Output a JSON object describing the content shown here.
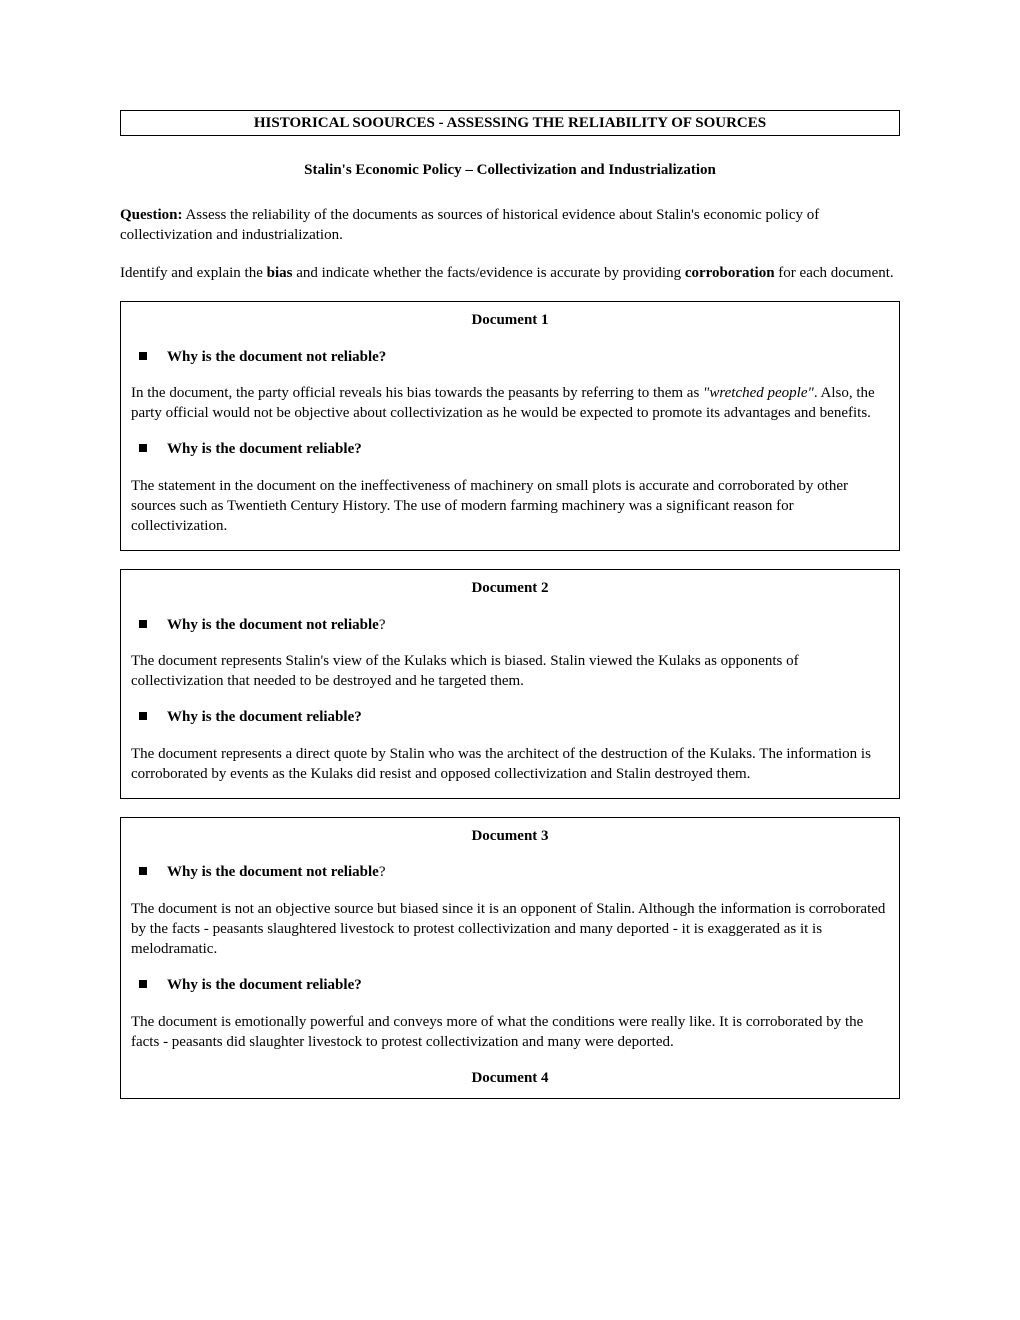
{
  "header": {
    "title": "HISTORICAL SOOURCES - ASSESSING THE RELIABILITY OF SOURCES",
    "subtitle": "Stalin's Economic Policy – Collectivization and Industrialization"
  },
  "intro": {
    "question_label": "Question:",
    "question_text": " Assess the reliability of the documents as sources of historical evidence about Stalin's economic policy of collectivization and industrialization.",
    "instr_pre": "Identify and explain the ",
    "instr_b1": "bias",
    "instr_mid": " and indicate whether the facts/evidence is accurate by providing ",
    "instr_b2": "corroboration",
    "instr_post": " for each document."
  },
  "doc1": {
    "title": "Document 1",
    "q1": "Why is the document not reliable?",
    "a1_pre": "In the document, the party official reveals his bias towards the peasants by referring to them as ",
    "a1_ital": "\"wretched people\"",
    "a1_post": ". Also, the party official would not be objective about collectivization as he would be expected to promote its advantages and benefits.",
    "q2": "Why is the document reliable?",
    "a2": "The statement in the document on the ineffectiveness of machinery on small plots is accurate and corroborated by other sources such as Twentieth Century History. The use of modern farming machinery was a significant reason for collectivization."
  },
  "doc2": {
    "title": "Document 2",
    "q1b": "Why is the document not reliable",
    "q1q": "?",
    "a1": "The document represents Stalin's view of the Kulaks which is biased. Stalin viewed the Kulaks as opponents of collectivization that needed to be destroyed and he targeted them.",
    "q2": "Why is the document reliable?",
    "a2": "The document represents a direct quote by Stalin who was the architect of the destruction of the Kulaks. The information is corroborated by events as the Kulaks did resist and opposed collectivization and Stalin destroyed them."
  },
  "doc3": {
    "title": "Document 3",
    "q1b": "Why is the document not reliable",
    "q1q": "?",
    "a1": "The document is not an objective source but biased since it is an opponent of Stalin. Although the information is corroborated by the facts - peasants slaughtered livestock to protest collectivization and many deported - it is exaggerated as it is melodramatic.",
    "q2": "Why is the document reliable?",
    "a2": "The document is emotionally powerful and conveys more of what the conditions were really like. It is corroborated by the facts - peasants did slaughter livestock to protest collectivization and many were deported.",
    "doc4_title": "Document 4"
  },
  "style": {
    "background_color": "#ffffff",
    "text_color": "#000000",
    "font_family": "Times New Roman",
    "body_fontsize": 15,
    "border_color": "#000000"
  }
}
